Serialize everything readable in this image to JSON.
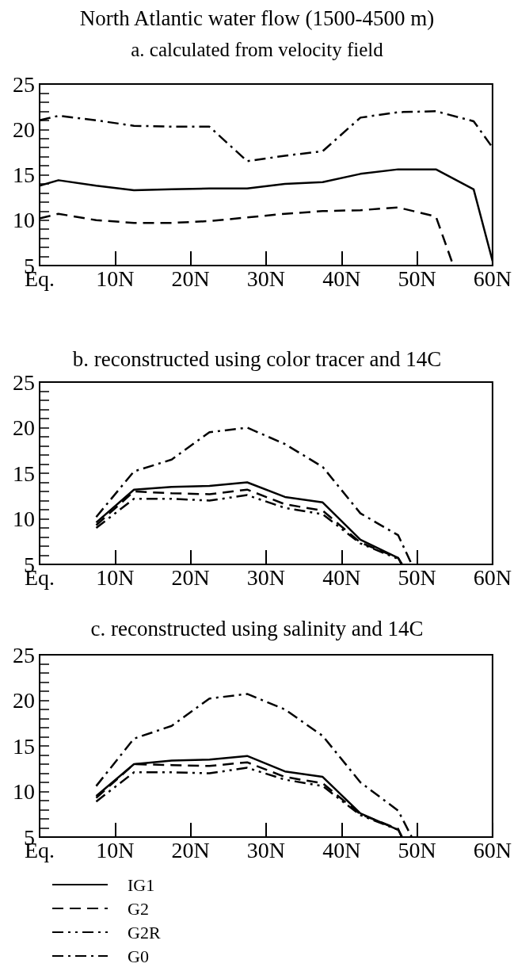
{
  "chart_data": [
    {
      "type": "line",
      "title": "North Atlantic water flow (1500-4500 m)",
      "subtitle": "a. calculated from velocity field",
      "xlim": [
        0,
        60
      ],
      "xticks": [
        {
          "value": 0,
          "label": "Eq."
        },
        {
          "value": 10,
          "label": "10N"
        },
        {
          "value": 20,
          "label": "20N"
        },
        {
          "value": 30,
          "label": "30N"
        },
        {
          "value": 40,
          "label": "40N"
        },
        {
          "value": 50,
          "label": "50N"
        },
        {
          "value": 60,
          "label": "60N"
        }
      ],
      "ylim": [
        5,
        25
      ],
      "yticks": [
        5,
        {
          "value": 6,
          "label": null
        },
        {
          "value": 7,
          "label": null
        },
        {
          "value": 8,
          "label": null
        },
        {
          "value": 9,
          "label": null
        },
        10,
        {
          "value": 11,
          "label": null
        },
        {
          "value": 12,
          "label": null
        },
        {
          "value": 13,
          "label": null
        },
        {
          "value": 14,
          "label": null
        },
        15,
        {
          "value": 16,
          "label": null
        },
        {
          "value": 17,
          "label": null
        },
        {
          "value": 18,
          "label": null
        },
        {
          "value": 19,
          "label": null
        },
        20,
        {
          "value": 21,
          "label": null
        },
        {
          "value": 22,
          "label": null
        },
        {
          "value": 23,
          "label": null
        },
        {
          "value": 24,
          "label": null
        },
        25
      ],
      "grid": false,
      "legend": false,
      "marker": "none",
      "series": [
        {
          "color": "#000000",
          "line_style": "solid",
          "x": [
            0,
            2.5,
            7.5,
            12.5,
            17.5,
            22.5,
            27.5,
            32.5,
            37.5,
            42.5,
            47.5,
            52.5,
            57.5,
            60
          ],
          "values": [
            13.8,
            14.4,
            13.8,
            13.3,
            13.4,
            13.5,
            13.5,
            14.0,
            14.2,
            15.1,
            15.6,
            15.6,
            13.4,
            5.5
          ]
        },
        {
          "color": "#000000",
          "line_style": "dashed",
          "x": [
            0,
            2.5,
            7.5,
            12.5,
            17.5,
            22.5,
            27.5,
            32.5,
            37.5,
            42.5,
            47.5,
            52.5,
            54.8
          ],
          "values": [
            10.2,
            10.7,
            10.0,
            9.7,
            9.7,
            9.9,
            10.3,
            10.7,
            11.0,
            11.1,
            11.4,
            10.4,
            5
          ]
        },
        {
          "color": "#000000",
          "line_style": "dashdot",
          "x": [
            0,
            2.5,
            7.5,
            12.5,
            17.5,
            22.5,
            27.5,
            32.5,
            37.5,
            42.5,
            47.5,
            52.5,
            57.5,
            60
          ],
          "values": [
            21.0,
            21.5,
            21.0,
            20.4,
            20.3,
            20.3,
            16.5,
            17.1,
            17.6,
            21.3,
            21.9,
            22.0,
            20.9,
            18.0
          ]
        }
      ]
    },
    {
      "type": "line",
      "title": "b. reconstructed using color tracer and 14C",
      "xlim": [
        0,
        60
      ],
      "xticks": [
        {
          "value": 0,
          "label": "Eq."
        },
        {
          "value": 10,
          "label": "10N"
        },
        {
          "value": 20,
          "label": "20N"
        },
        {
          "value": 30,
          "label": "30N"
        },
        {
          "value": 40,
          "label": "40N"
        },
        {
          "value": 50,
          "label": "50N"
        },
        {
          "value": 60,
          "label": "60N"
        }
      ],
      "ylim": [
        5,
        25
      ],
      "yticks": [
        5,
        {
          "value": 6,
          "label": null
        },
        {
          "value": 7,
          "label": null
        },
        {
          "value": 8,
          "label": null
        },
        {
          "value": 9,
          "label": null
        },
        10,
        {
          "value": 11,
          "label": null
        },
        {
          "value": 12,
          "label": null
        },
        {
          "value": 13,
          "label": null
        },
        {
          "value": 14,
          "label": null
        },
        15,
        {
          "value": 16,
          "label": null
        },
        {
          "value": 17,
          "label": null
        },
        {
          "value": 18,
          "label": null
        },
        {
          "value": 19,
          "label": null
        },
        20,
        {
          "value": 21,
          "label": null
        },
        {
          "value": 22,
          "label": null
        },
        {
          "value": 23,
          "label": null
        },
        {
          "value": 24,
          "label": null
        },
        25
      ],
      "grid": false,
      "legend": false,
      "marker": "none",
      "series": [
        {
          "color": "#000000",
          "line_style": "solid",
          "x": [
            7.5,
            12.5,
            17.5,
            22.5,
            27.5,
            32.5,
            37.5,
            42.5,
            47.5,
            48.0
          ],
          "values": [
            9.6,
            13.2,
            13.5,
            13.6,
            14.0,
            12.4,
            11.8,
            7.7,
            5.7,
            5
          ]
        },
        {
          "color": "#000000",
          "line_style": "dashed",
          "x": [
            7.5,
            12.5,
            17.5,
            22.5,
            27.5,
            32.5,
            37.5,
            42.5,
            47.5,
            48.0
          ],
          "values": [
            9.3,
            13.0,
            12.8,
            12.7,
            13.2,
            11.6,
            10.9,
            7.4,
            5.7,
            5
          ]
        },
        {
          "color": "#000000",
          "line_style": "dashdotdot",
          "x": [
            7.5,
            12.5,
            17.5,
            22.5,
            27.5,
            32.5,
            37.5,
            42.5,
            47.5,
            48.0
          ],
          "values": [
            9.0,
            12.2,
            12.2,
            12.0,
            12.6,
            11.2,
            10.5,
            7.3,
            5.6,
            5
          ]
        },
        {
          "color": "#000000",
          "line_style": "dashdot",
          "x": [
            7.5,
            12.5,
            17.5,
            22.5,
            27.5,
            32.5,
            37.5,
            42.5,
            47.5,
            49.3
          ],
          "values": [
            10.2,
            15.2,
            16.5,
            19.5,
            20.0,
            18.2,
            15.7,
            10.6,
            8.2,
            5
          ]
        }
      ]
    },
    {
      "type": "line",
      "title": "c. reconstructed using salinity and 14C",
      "xlim": [
        0,
        60
      ],
      "xticks": [
        {
          "value": 0,
          "label": "Eq."
        },
        {
          "value": 10,
          "label": "10N"
        },
        {
          "value": 20,
          "label": "20N"
        },
        {
          "value": 30,
          "label": "30N"
        },
        {
          "value": 40,
          "label": "40N"
        },
        {
          "value": 50,
          "label": "50N"
        },
        {
          "value": 60,
          "label": "60N"
        }
      ],
      "ylim": [
        5,
        25
      ],
      "yticks": [
        5,
        {
          "value": 6,
          "label": null
        },
        {
          "value": 7,
          "label": null
        },
        {
          "value": 8,
          "label": null
        },
        {
          "value": 9,
          "label": null
        },
        10,
        {
          "value": 11,
          "label": null
        },
        {
          "value": 12,
          "label": null
        },
        {
          "value": 13,
          "label": null
        },
        {
          "value": 14,
          "label": null
        },
        15,
        {
          "value": 16,
          "label": null
        },
        {
          "value": 17,
          "label": null
        },
        {
          "value": 18,
          "label": null
        },
        {
          "value": 19,
          "label": null
        },
        20,
        {
          "value": 21,
          "label": null
        },
        {
          "value": 22,
          "label": null
        },
        {
          "value": 23,
          "label": null
        },
        {
          "value": 24,
          "label": null
        },
        25
      ],
      "grid": false,
      "legend": "bottom",
      "marker": "none",
      "series": [
        {
          "name": "IG1",
          "color": "#000000",
          "line_style": "solid",
          "x": [
            7.5,
            12.5,
            17.5,
            22.5,
            27.5,
            32.5,
            37.5,
            42.5,
            47.5,
            48.0
          ],
          "values": [
            9.5,
            13.0,
            13.4,
            13.5,
            13.9,
            12.2,
            11.6,
            7.6,
            5.8,
            5
          ]
        },
        {
          "name": "G2",
          "color": "#000000",
          "line_style": "dashed",
          "x": [
            7.5,
            12.5,
            17.5,
            22.5,
            27.5,
            32.5,
            37.5,
            42.5,
            47.5,
            48.0
          ],
          "values": [
            9.3,
            13.0,
            12.9,
            12.8,
            13.2,
            11.6,
            10.9,
            7.5,
            5.9,
            5
          ]
        },
        {
          "name": "G2R",
          "color": "#000000",
          "line_style": "dashdotdot",
          "x": [
            7.5,
            12.5,
            17.5,
            22.5,
            27.5,
            32.5,
            37.5,
            42.5,
            47.5,
            48.0
          ],
          "values": [
            8.9,
            12.1,
            12.1,
            12.0,
            12.6,
            11.3,
            10.6,
            7.4,
            5.8,
            5
          ]
        },
        {
          "name": "G0",
          "color": "#000000",
          "line_style": "dashdot",
          "x": [
            7.5,
            12.5,
            17.5,
            22.5,
            27.5,
            32.5,
            37.5,
            42.5,
            47.5,
            49.3
          ],
          "values": [
            10.6,
            15.8,
            17.2,
            20.2,
            20.7,
            19.0,
            16.1,
            11.0,
            7.9,
            5
          ]
        }
      ]
    }
  ]
}
